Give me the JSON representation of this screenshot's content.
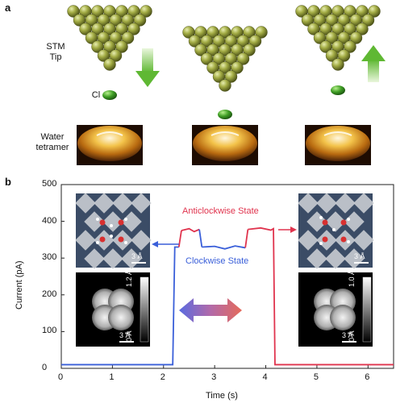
{
  "panel_a": {
    "letter": "a",
    "tip_label_line1": "STM",
    "tip_label_line2": "Tip",
    "cl_label": "Cl",
    "water_label_line1": "Water",
    "water_label_line2": "tetramer",
    "frames": [
      {
        "tip_state": "approaching",
        "arrow": "down",
        "arrow_color": "#6abf3a"
      },
      {
        "tip_state": "close",
        "arrow": "none"
      },
      {
        "tip_state": "retracting",
        "arrow": "up",
        "arrow_color": "#6abf3a"
      }
    ]
  },
  "panel_b": {
    "letter": "b",
    "anticlockwise_label": "Anticlockwise State",
    "clockwise_label": "Clockwise State",
    "anticlockwise_color": "#e0344e",
    "clockwise_color": "#3a5fd9",
    "scale_3A": "3 Å",
    "colorbar_left_top": "1.2 Å",
    "colorbar_left_bottom": "0 Å",
    "colorbar_right_top": "1.0 Å",
    "colorbar_right_bottom": "0 Å"
  },
  "chart_data": {
    "type": "line",
    "xlabel": "Time (s)",
    "ylabel": "Current (pA)",
    "xlim": [
      0,
      6.5
    ],
    "ylim": [
      0,
      500
    ],
    "x_ticks": [
      0,
      1,
      2,
      3,
      4,
      5,
      6
    ],
    "y_ticks": [
      0,
      100,
      200,
      300,
      400,
      500
    ],
    "series": [
      {
        "name": "approach",
        "color": "#3a5fd9",
        "x": [
          0.0,
          2.18,
          2.22,
          2.3
        ],
        "y": [
          10,
          10,
          330,
          330
        ]
      },
      {
        "name": "anticlockwise",
        "color": "#e0344e",
        "x": [
          2.35,
          2.5,
          2.6,
          2.7
        ],
        "y": [
          375,
          380,
          372,
          378
        ]
      },
      {
        "name": "clockwise",
        "color": "#3a5fd9",
        "x": [
          2.75,
          3.0,
          3.2,
          3.4,
          3.6
        ],
        "y": [
          330,
          332,
          325,
          333,
          328
        ]
      },
      {
        "name": "anticlockwise",
        "color": "#e0344e",
        "x": [
          3.65,
          3.9,
          4.1,
          4.15,
          4.18,
          6.5
        ],
        "y": [
          378,
          382,
          376,
          380,
          10,
          10
        ]
      }
    ]
  }
}
